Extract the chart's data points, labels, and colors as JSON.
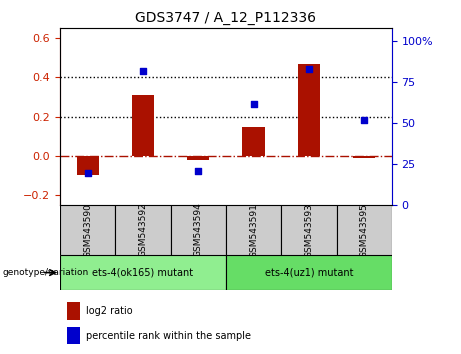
{
  "title": "GDS3747 / A_12_P112336",
  "samples": [
    "GSM543590",
    "GSM543592",
    "GSM543594",
    "GSM543591",
    "GSM543593",
    "GSM543595"
  ],
  "log2_ratio": [
    -0.095,
    0.31,
    -0.02,
    0.15,
    0.47,
    -0.01
  ],
  "percentile_rank": [
    20,
    82,
    21,
    62,
    83,
    52
  ],
  "groups": [
    {
      "label": "ets-4(ok165) mutant",
      "samples": [
        0,
        1,
        2
      ],
      "color": "#90EE90"
    },
    {
      "label": "ets-4(uz1) mutant",
      "samples": [
        3,
        4,
        5
      ],
      "color": "#66DD66"
    }
  ],
  "bar_color": "#AA1100",
  "dot_color": "#0000CC",
  "left_ylim": [
    -0.25,
    0.65
  ],
  "right_ylim": [
    0,
    108
  ],
  "left_yticks": [
    -0.2,
    0.0,
    0.2,
    0.4,
    0.6
  ],
  "right_yticks": [
    0,
    25,
    50,
    75,
    100
  ],
  "left_ylabel_color": "#CC2200",
  "right_ylabel_color": "#0000CC",
  "hline_y": 0.0,
  "dotted_lines": [
    0.2,
    0.4
  ],
  "bar_width": 0.4,
  "background_color": "#ffffff",
  "tick_label_bg": "#cccccc",
  "group_bg_color_1": "#90EE90",
  "group_bg_color_2": "#66DD66"
}
